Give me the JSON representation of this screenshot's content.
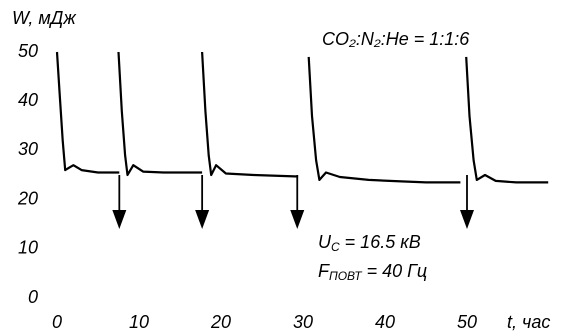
{
  "chart_data": {
    "type": "line",
    "y_label": "W, мДж",
    "x_label": "t, час",
    "annotations": [
      {
        "main": "CO₂:N₂:He = 1:1:6"
      },
      {
        "main": "U",
        "sub": "C",
        "rest": " = 16.5 кВ"
      },
      {
        "main": "F",
        "sub": "ПОВТ",
        "rest": " = 40 Гц"
      }
    ],
    "series": [
      {
        "color": "#000000",
        "x": [
          0,
          0.3,
          0.7,
          1.0,
          1.5,
          2.0,
          3.0,
          5.0,
          7.6,
          null,
          7.5,
          7.9,
          8.3,
          8.6,
          9.3,
          10.5,
          13,
          17.7,
          null,
          17.7,
          18.1,
          18.5,
          18.8,
          19.4,
          20.6,
          24,
          29.4,
          null,
          30.7,
          31.1,
          31.6,
          32.0,
          32.8,
          34.5,
          38,
          42,
          45,
          49.2,
          null,
          49.9,
          50.3,
          50.8,
          51.2,
          52.2,
          53.5,
          56,
          59.9
        ],
        "values": [
          50,
          42,
          32,
          26,
          26.5,
          27,
          26,
          25.5,
          25.5,
          null,
          50,
          38,
          29,
          25,
          27,
          25.7,
          25.5,
          25.5,
          null,
          50,
          38,
          29,
          25,
          27,
          25.3,
          25,
          24.7,
          null,
          49,
          37,
          28,
          24,
          25.5,
          24.6,
          24,
          23.7,
          23.5,
          23.5,
          null,
          49,
          37,
          28,
          24,
          25,
          23.8,
          23.5,
          23.5
        ]
      }
    ],
    "arrows_x": [
      7.6,
      17.7,
      29.3,
      50
    ],
    "xlim": [
      0,
      60
    ],
    "ylim": [
      0,
      50
    ],
    "xticks": [
      0,
      10,
      20,
      30,
      40,
      50
    ],
    "yticks": [
      0,
      10,
      20,
      30,
      40,
      50
    ]
  }
}
